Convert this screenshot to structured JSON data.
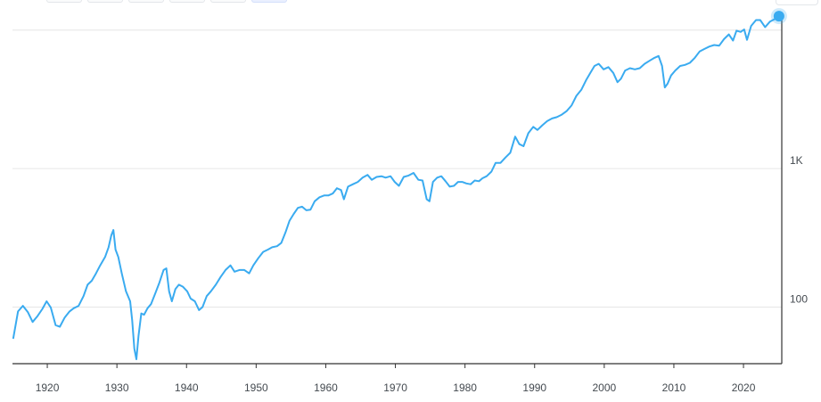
{
  "tabs": [
    "",
    "",
    "",
    "",
    "",
    ""
  ],
  "chart_data": {
    "type": "line",
    "title": "",
    "xlabel": "",
    "ylabel": "",
    "y_scale": "log",
    "xlim": [
      1915,
      2025.5
    ],
    "ylim": [
      39,
      13000
    ],
    "x_ticks": [
      1920,
      1930,
      1940,
      1950,
      1960,
      1970,
      1980,
      1990,
      2000,
      2010,
      2020
    ],
    "y_ticks": [
      {
        "value": 100,
        "label": "100"
      },
      {
        "value": 1000,
        "label": "1K"
      },
      {
        "value": 10000,
        "label": ""
      }
    ],
    "grid": "horizontal",
    "legend": "none",
    "line_color": "#3aabf0",
    "series": [
      {
        "x": [
          1915.1,
          1915.8,
          1916.5,
          1917.2,
          1917.9,
          1918.6,
          1919.3,
          1919.9,
          1920.5,
          1921.2,
          1921.8,
          1922.5,
          1923.2,
          1923.8,
          1924.5,
          1925.2,
          1925.8,
          1926.4,
          1927.0,
          1927.6,
          1928.3,
          1928.8,
          1929.2,
          1929.5,
          1929.8,
          1930.2,
          1930.7,
          1931.3,
          1931.9,
          1932.2,
          1932.5,
          1932.8,
          1933.1,
          1933.5,
          1933.9,
          1934.4,
          1934.9,
          1935.5,
          1936.1,
          1936.7,
          1937.1,
          1937.5,
          1937.9,
          1938.4,
          1938.9,
          1939.5,
          1940.1,
          1940.6,
          1941.2,
          1941.8,
          1942.3,
          1942.9,
          1943.5,
          1944.2,
          1944.9,
          1945.6,
          1946.3,
          1946.9,
          1947.6,
          1948.3,
          1949.0,
          1949.6,
          1950.3,
          1951.0,
          1951.7,
          1952.3,
          1953.0,
          1953.6,
          1954.2,
          1954.8,
          1955.4,
          1956.0,
          1956.6,
          1957.2,
          1957.8,
          1958.4,
          1959.1,
          1959.8,
          1960.4,
          1961.0,
          1961.6,
          1962.2,
          1962.6,
          1963.2,
          1963.9,
          1964.6,
          1965.3,
          1966.0,
          1966.6,
          1967.3,
          1968.0,
          1968.6,
          1969.3,
          1969.9,
          1970.5,
          1971.2,
          1971.9,
          1972.6,
          1973.3,
          1973.9,
          1974.5,
          1974.9,
          1975.4,
          1976.0,
          1976.6,
          1977.2,
          1977.8,
          1978.4,
          1979.0,
          1979.6,
          1980.2,
          1980.8,
          1981.4,
          1982.0,
          1982.5,
          1983.1,
          1983.8,
          1984.4,
          1985.1,
          1985.8,
          1986.5,
          1987.2,
          1987.8,
          1988.4,
          1989.1,
          1989.8,
          1990.4,
          1991.1,
          1991.8,
          1992.5,
          1993.2,
          1993.9,
          1994.6,
          1995.3,
          1996.0,
          1996.7,
          1997.4,
          1998.1,
          1998.6,
          1999.2,
          1999.9,
          2000.6,
          2001.3,
          2001.9,
          2002.4,
          2003.0,
          2003.7,
          2004.4,
          2005.1,
          2005.8,
          2006.5,
          2007.2,
          2007.8,
          2008.3,
          2008.7,
          2009.1,
          2009.6,
          2010.2,
          2010.9,
          2011.6,
          2012.3,
          2013.0,
          2013.7,
          2014.4,
          2015.1,
          2015.8,
          2016.5,
          2017.2,
          2017.9,
          2018.5,
          2019.0,
          2019.6,
          2020.1,
          2020.5,
          2021.1,
          2021.8,
          2022.4,
          2023.1,
          2023.8,
          2024.5,
          2025.1
        ],
        "y": [
          59,
          93,
          102,
          92,
          78,
          86,
          97,
          110,
          99,
          74,
          72,
          84,
          93,
          98,
          102,
          120,
          145,
          155,
          175,
          200,
          230,
          270,
          330,
          360,
          260,
          230,
          175,
          130,
          110,
          80,
          50,
          42,
          62,
          90,
          88,
          98,
          105,
          125,
          150,
          185,
          190,
          130,
          110,
          135,
          145,
          140,
          130,
          115,
          110,
          95,
          100,
          120,
          130,
          145,
          165,
          185,
          200,
          180,
          185,
          185,
          175,
          200,
          225,
          250,
          260,
          270,
          275,
          290,
          345,
          420,
          470,
          520,
          530,
          500,
          505,
          580,
          620,
          640,
          640,
          660,
          720,
          700,
          600,
          740,
          770,
          800,
          860,
          900,
          830,
          870,
          880,
          860,
          880,
          800,
          750,
          870,
          890,
          930,
          830,
          820,
          600,
          580,
          800,
          860,
          880,
          810,
          740,
          750,
          800,
          800,
          780,
          770,
          820,
          810,
          850,
          880,
          950,
          1100,
          1100,
          1200,
          1300,
          1700,
          1500,
          1450,
          1800,
          2000,
          1900,
          2050,
          2200,
          2300,
          2350,
          2450,
          2600,
          2850,
          3350,
          3700,
          4350,
          5000,
          5500,
          5700,
          5200,
          5400,
          4900,
          4200,
          4450,
          5100,
          5300,
          5200,
          5300,
          5700,
          6000,
          6300,
          6500,
          5500,
          3850,
          4100,
          4700,
          5100,
          5500,
          5600,
          5800,
          6300,
          7000,
          7300,
          7600,
          7800,
          7700,
          8600,
          9300,
          8400,
          9900,
          9700,
          10100,
          8500,
          10700,
          11800,
          11800,
          10500,
          11500,
          12000,
          12600
        ]
      }
    ]
  }
}
